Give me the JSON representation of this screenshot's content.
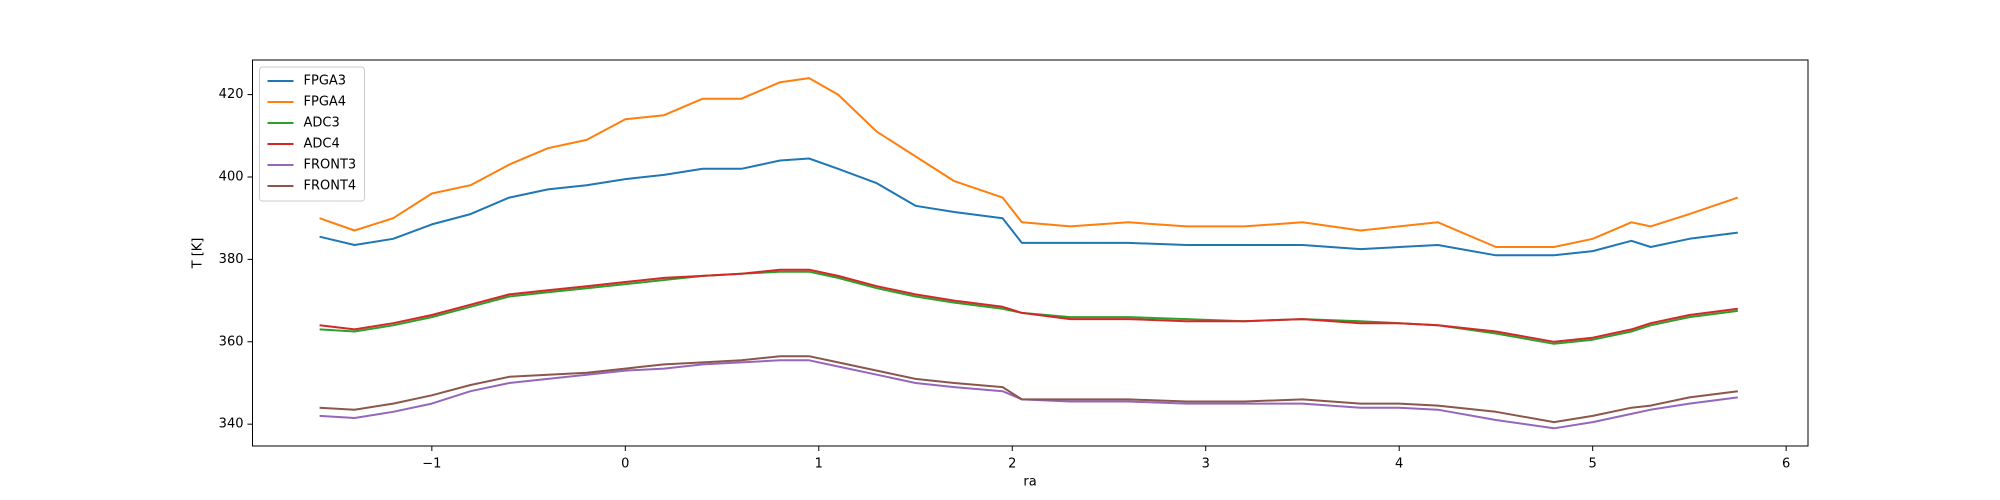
{
  "chart_data": {
    "type": "line",
    "xlabel": "ra",
    "ylabel": "T [K]",
    "x": [
      -1.58,
      -1.4,
      -1.2,
      -1.0,
      -0.8,
      -0.6,
      -0.4,
      -0.2,
      0,
      0.2,
      0.4,
      0.6,
      0.8,
      0.95,
      1.1,
      1.3,
      1.5,
      1.7,
      1.95,
      2.05,
      2.3,
      2.6,
      2.9,
      3.2,
      3.5,
      3.8,
      4.0,
      4.2,
      4.5,
      4.8,
      5.0,
      5.2,
      5.3,
      5.5,
      5.75
    ],
    "series": [
      {
        "name": "FPGA3",
        "color": "#1f77b4",
        "values": [
          385.5,
          383.5,
          385,
          388.5,
          391,
          395,
          397,
          398,
          399.5,
          400.5,
          402,
          402,
          404,
          404.5,
          402,
          398.5,
          393,
          391.5,
          390,
          384,
          384,
          384,
          383.5,
          383.5,
          383.5,
          382.5,
          383,
          383.5,
          381,
          381,
          382,
          384.5,
          383,
          385,
          386.5
        ]
      },
      {
        "name": "FPGA4",
        "color": "#ff7f0e",
        "values": [
          390,
          387,
          390,
          396,
          398,
          403,
          407,
          409,
          414,
          415,
          419,
          419,
          423,
          424,
          420,
          411,
          405,
          399,
          395,
          389,
          388,
          389,
          388,
          388,
          389,
          387,
          388,
          389,
          383,
          383,
          385,
          389,
          388,
          391,
          395
        ]
      },
      {
        "name": "ADC3",
        "color": "#2ca02c",
        "values": [
          363,
          362.5,
          364,
          366,
          368.5,
          371,
          372,
          373,
          374,
          375,
          376,
          376.5,
          377,
          377,
          375.5,
          373,
          371,
          369.5,
          368,
          367,
          366,
          366,
          365.5,
          365,
          365.5,
          365,
          364.5,
          364,
          362,
          359.5,
          360.5,
          362.5,
          364,
          366,
          367.5
        ]
      },
      {
        "name": "ADC4",
        "color": "#d62728",
        "values": [
          364,
          363,
          364.5,
          366.5,
          369,
          371.5,
          372.5,
          373.5,
          374.5,
          375.5,
          376,
          376.5,
          377.5,
          377.5,
          376,
          373.5,
          371.5,
          370,
          368.5,
          367,
          365.5,
          365.5,
          365,
          365,
          365.5,
          364.5,
          364.5,
          364,
          362.5,
          360,
          361,
          363,
          364.5,
          366.5,
          368
        ]
      },
      {
        "name": "FRONT3",
        "color": "#9467bd",
        "values": [
          342,
          341.5,
          343,
          345,
          348,
          350,
          351,
          352,
          353,
          353.5,
          354.5,
          355,
          355.5,
          355.5,
          354,
          352,
          350,
          349,
          348,
          346,
          345.5,
          345.5,
          345,
          345,
          345,
          344,
          344,
          343.5,
          341,
          339,
          340.5,
          342.5,
          343.5,
          345,
          346.5
        ]
      },
      {
        "name": "FRONT4",
        "color": "#8c564b",
        "values": [
          344,
          343.5,
          345,
          347,
          349.5,
          351.5,
          352,
          352.5,
          353.5,
          354.5,
          355,
          355.5,
          356.5,
          356.5,
          355,
          353,
          351,
          350,
          349,
          346,
          346,
          346,
          345.5,
          345.5,
          346,
          345,
          345,
          344.5,
          343,
          340.5,
          342,
          344,
          344.5,
          346.5,
          348
        ]
      }
    ],
    "xlim": [
      -1.927,
      6.113
    ],
    "xticks": [
      {
        "value": -1,
        "label": "−1"
      },
      0,
      1,
      2,
      3,
      4,
      5,
      6
    ],
    "ylim": [
      334.7,
      428.4
    ],
    "yticks": [
      340,
      360,
      380,
      400,
      420
    ],
    "legend": "upper left"
  }
}
